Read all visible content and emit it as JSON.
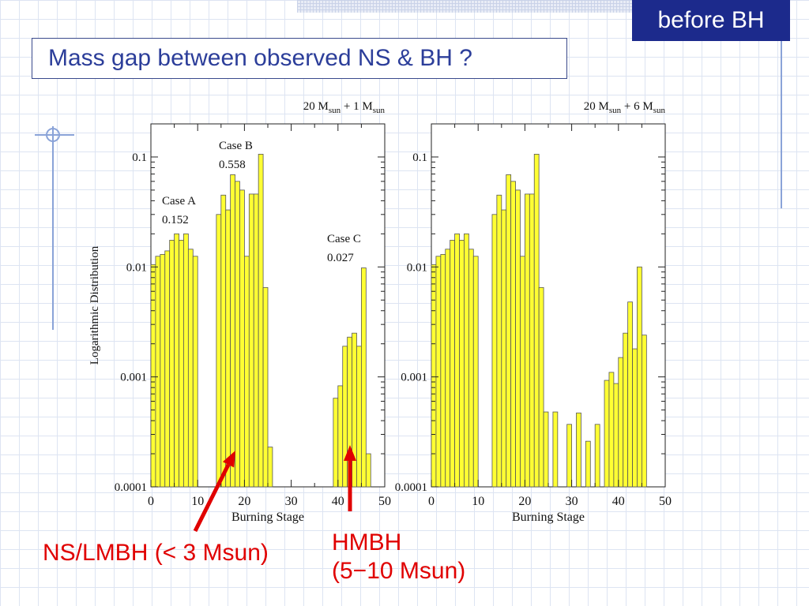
{
  "slide": {
    "badge": "before BH",
    "title": "Mass gap between observed NS & BH ?",
    "callouts": {
      "left": "NS/LMBH (< 3 Msun)",
      "right_line1": "HMBH",
      "right_line2": "(5−10 Msun)"
    }
  },
  "colors": {
    "bar_fill": "#ffff33",
    "bar_stroke": "#555555",
    "callout_red": "#e00000",
    "badge_bg": "#1c2a8c",
    "title_text": "#2c3e9a"
  },
  "chart_data": [
    {
      "type": "bar",
      "title_prefix": "20 M",
      "title_sub1": "sun",
      "title_mid": " + 1 M",
      "title_sub2": "sun",
      "xlabel": "Burning Stage",
      "ylabel": "Logarithmic Distribution",
      "yscale": "log",
      "xlim": [
        0,
        50
      ],
      "ylim": [
        0.0001,
        0.2
      ],
      "xticks": [
        0,
        10,
        20,
        30,
        40,
        50
      ],
      "xtick_labels": [
        "0",
        "10",
        "20",
        "30",
        "40",
        "50"
      ],
      "yticks": [
        0.0001,
        0.001,
        0.01,
        0.1
      ],
      "ytick_labels": [
        "0.0001",
        "0.001",
        "0.01",
        "0.1"
      ],
      "grid": false,
      "bar_width": 1,
      "bars": [
        {
          "x": 1,
          "value": 0.0105
        },
        {
          "x": 2,
          "value": 0.0125
        },
        {
          "x": 3,
          "value": 0.013
        },
        {
          "x": 4,
          "value": 0.014
        },
        {
          "x": 5,
          "value": 0.0175
        },
        {
          "x": 6,
          "value": 0.02
        },
        {
          "x": 7,
          "value": 0.0175
        },
        {
          "x": 8,
          "value": 0.02
        },
        {
          "x": 9,
          "value": 0.0145
        },
        {
          "x": 10,
          "value": 0.0125
        },
        {
          "x": 15,
          "value": 0.03
        },
        {
          "x": 16,
          "value": 0.045
        },
        {
          "x": 17,
          "value": 0.033
        },
        {
          "x": 18,
          "value": 0.069
        },
        {
          "x": 19,
          "value": 0.06
        },
        {
          "x": 20,
          "value": 0.05
        },
        {
          "x": 21,
          "value": 0.0125
        },
        {
          "x": 22,
          "value": 0.046
        },
        {
          "x": 23,
          "value": 0.046
        },
        {
          "x": 24,
          "value": 0.106
        },
        {
          "x": 25,
          "value": 0.0065
        },
        {
          "x": 26,
          "value": 0.00023
        },
        {
          "x": 40,
          "value": 0.00064
        },
        {
          "x": 41,
          "value": 0.00083
        },
        {
          "x": 42,
          "value": 0.0019
        },
        {
          "x": 43,
          "value": 0.0023
        },
        {
          "x": 44,
          "value": 0.0025
        },
        {
          "x": 45,
          "value": 0.0019
        },
        {
          "x": 46,
          "value": 0.0098
        },
        {
          "x": 47,
          "value": 0.0002
        }
      ],
      "annotations": [
        {
          "lines": [
            "Case A",
            "0.152"
          ]
        },
        {
          "lines": [
            "Case B",
            "0.558"
          ]
        },
        {
          "lines": [
            "Case C",
            "0.027"
          ]
        }
      ]
    },
    {
      "type": "bar",
      "title_prefix": "20 M",
      "title_sub1": "sun",
      "title_mid": " + 6 M",
      "title_sub2": "sun",
      "xlabel": "Burning Stage",
      "ylabel": "",
      "yscale": "log",
      "xlim": [
        0,
        50
      ],
      "ylim": [
        0.0001,
        0.2
      ],
      "xticks": [
        0,
        10,
        20,
        30,
        40,
        50
      ],
      "xtick_labels": [
        "0",
        "10",
        "20",
        "30",
        "40",
        "50"
      ],
      "yticks": [
        0.0001,
        0.001,
        0.01,
        0.1
      ],
      "ytick_labels": [
        "0.0001",
        "0.001",
        "0.01",
        "0.1"
      ],
      "grid": false,
      "bar_width": 1,
      "bars": [
        {
          "x": 1,
          "value": 0.0105
        },
        {
          "x": 2,
          "value": 0.0125
        },
        {
          "x": 3,
          "value": 0.013
        },
        {
          "x": 4,
          "value": 0.0145
        },
        {
          "x": 5,
          "value": 0.0175
        },
        {
          "x": 6,
          "value": 0.02
        },
        {
          "x": 7,
          "value": 0.0175
        },
        {
          "x": 8,
          "value": 0.02
        },
        {
          "x": 9,
          "value": 0.0145
        },
        {
          "x": 10,
          "value": 0.0125
        },
        {
          "x": 14,
          "value": 0.03
        },
        {
          "x": 15,
          "value": 0.045
        },
        {
          "x": 16,
          "value": 0.033
        },
        {
          "x": 17,
          "value": 0.069
        },
        {
          "x": 18,
          "value": 0.06
        },
        {
          "x": 19,
          "value": 0.05
        },
        {
          "x": 20,
          "value": 0.0125
        },
        {
          "x": 21,
          "value": 0.046
        },
        {
          "x": 22,
          "value": 0.046
        },
        {
          "x": 23,
          "value": 0.106
        },
        {
          "x": 24,
          "value": 0.0065
        },
        {
          "x": 25,
          "value": 0.00048
        },
        {
          "x": 27,
          "value": 0.00048
        },
        {
          "x": 30,
          "value": 0.00037
        },
        {
          "x": 32,
          "value": 0.00047
        },
        {
          "x": 34,
          "value": 0.00026
        },
        {
          "x": 36,
          "value": 0.00037
        },
        {
          "x": 38,
          "value": 0.00093
        },
        {
          "x": 39,
          "value": 0.0011
        },
        {
          "x": 40,
          "value": 0.00087
        },
        {
          "x": 41,
          "value": 0.0015
        },
        {
          "x": 42,
          "value": 0.0025
        },
        {
          "x": 43,
          "value": 0.0048
        },
        {
          "x": 44,
          "value": 0.0018
        },
        {
          "x": 45,
          "value": 0.01
        },
        {
          "x": 46,
          "value": 0.0024
        }
      ],
      "annotations": []
    }
  ]
}
